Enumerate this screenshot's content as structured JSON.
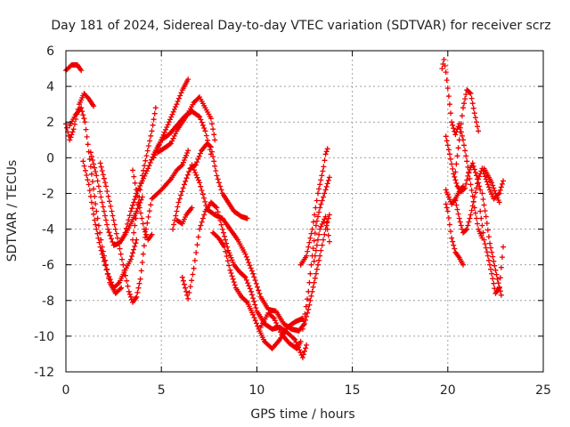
{
  "chart_data": {
    "type": "scatter",
    "title": "Day 181 of 2024, Sidereal Day-to-day VTEC variation (SDTVAR) for receiver scrz",
    "xlabel": "GPS time / hours",
    "ylabel": "SDTVAR / TECUs",
    "xlim": [
      0,
      25
    ],
    "ylim": [
      -12,
      6
    ],
    "xticks": [
      "0",
      "5",
      "10",
      "15",
      "20",
      "25"
    ],
    "yticks": [
      "-12",
      "-10",
      "-8",
      "-6",
      "-4",
      "-2",
      "0",
      "2",
      "4",
      "6"
    ],
    "grid": true,
    "marker": "+",
    "color": "#ee0000",
    "tracks": [
      [
        [
          0.0,
          4.9
        ],
        [
          0.3,
          5.2
        ],
        [
          0.6,
          5.2
        ],
        [
          0.8,
          4.9
        ]
      ],
      [
        [
          0.0,
          1.9
        ],
        [
          0.2,
          1.0
        ],
        [
          0.4,
          1.6
        ],
        [
          0.7,
          3.0
        ],
        [
          0.95,
          3.6
        ],
        [
          1.2,
          3.3
        ],
        [
          1.45,
          2.9
        ]
      ],
      [
        [
          0.2,
          1.8
        ],
        [
          0.5,
          2.4
        ],
        [
          0.8,
          2.8
        ],
        [
          1.0,
          2.0
        ],
        [
          1.3,
          -0.5
        ],
        [
          1.6,
          -3.0
        ],
        [
          1.9,
          -5.0
        ],
        [
          2.2,
          -6.5
        ],
        [
          2.5,
          -7.3
        ],
        [
          2.8,
          -7.0
        ],
        [
          3.1,
          -6.3
        ],
        [
          3.4,
          -5.7
        ],
        [
          3.7,
          -4.6
        ]
      ],
      [
        [
          0.9,
          -0.2
        ],
        [
          1.2,
          -1.5
        ],
        [
          1.5,
          -3.5
        ],
        [
          1.8,
          -5.0
        ],
        [
          2.0,
          -5.8
        ],
        [
          2.3,
          -7.0
        ],
        [
          2.6,
          -7.6
        ],
        [
          2.9,
          -7.3
        ]
      ],
      [
        [
          1.3,
          0.3
        ],
        [
          1.6,
          -1.0
        ],
        [
          1.9,
          -2.5
        ],
        [
          2.2,
          -4.0
        ],
        [
          2.5,
          -4.9
        ],
        [
          2.8,
          -4.8
        ],
        [
          3.1,
          -4.3
        ],
        [
          3.4,
          -3.7
        ],
        [
          3.7,
          -3.0
        ],
        [
          4.0,
          -2.2
        ]
      ],
      [
        [
          1.8,
          -0.3
        ],
        [
          2.1,
          -1.6
        ],
        [
          2.4,
          -3.0
        ],
        [
          2.7,
          -4.5
        ],
        [
          3.0,
          -6.0
        ],
        [
          3.3,
          -7.5
        ],
        [
          3.5,
          -8.1
        ],
        [
          3.7,
          -7.8
        ],
        [
          3.9,
          -6.8
        ],
        [
          4.2,
          -4.0
        ],
        [
          4.5,
          -2.3
        ],
        [
          5.0,
          -1.8
        ],
        [
          5.5,
          -1.2
        ],
        [
          5.8,
          -0.7
        ],
        [
          6.1,
          -0.4
        ],
        [
          6.4,
          0.4
        ]
      ],
      [
        [
          3.5,
          -0.7
        ],
        [
          3.8,
          -2.5
        ],
        [
          4.1,
          -4.0
        ],
        [
          4.3,
          -4.6
        ],
        [
          4.5,
          -4.3
        ]
      ],
      [
        [
          3.5,
          -4.6
        ],
        [
          4.0,
          -1.0
        ],
        [
          4.5,
          1.5
        ],
        [
          4.7,
          2.8
        ]
      ],
      [
        [
          3.1,
          -4.2
        ],
        [
          3.4,
          -3.0
        ],
        [
          3.7,
          -2.0
        ],
        [
          4.0,
          -1.3
        ],
        [
          4.3,
          -0.6
        ],
        [
          4.6,
          0.2
        ],
        [
          5.0,
          1.0
        ],
        [
          5.4,
          1.3
        ],
        [
          5.8,
          1.8
        ],
        [
          6.2,
          2.3
        ],
        [
          6.6,
          2.6
        ],
        [
          7.0,
          2.3
        ],
        [
          7.3,
          1.5
        ],
        [
          7.6,
          0.2
        ]
      ],
      [
        [
          4.6,
          0.0
        ],
        [
          5.0,
          1.0
        ],
        [
          5.4,
          2.0
        ],
        [
          5.8,
          3.0
        ],
        [
          6.1,
          3.8
        ],
        [
          6.4,
          4.4
        ]
      ],
      [
        [
          4.8,
          0.3
        ],
        [
          5.1,
          0.5
        ],
        [
          5.5,
          0.8
        ],
        [
          5.8,
          1.5
        ],
        [
          6.1,
          2.0
        ],
        [
          6.4,
          2.5
        ],
        [
          6.7,
          3.1
        ],
        [
          7.0,
          3.4
        ],
        [
          7.3,
          2.8
        ],
        [
          7.6,
          2.2
        ],
        [
          7.8,
          1.0
        ]
      ],
      [
        [
          5.8,
          -3.5
        ],
        [
          6.1,
          -3.7
        ],
        [
          6.3,
          -3.2
        ],
        [
          6.6,
          -2.8
        ]
      ],
      [
        [
          6.1,
          -6.7
        ],
        [
          6.4,
          -7.9
        ],
        [
          6.7,
          -6.2
        ],
        [
          7.0,
          -4.0
        ],
        [
          7.3,
          -3.0
        ],
        [
          7.6,
          -2.5
        ],
        [
          7.9,
          -2.8
        ],
        [
          8.2,
          -4.0
        ],
        [
          8.5,
          -5.2
        ],
        [
          8.8,
          -6.0
        ],
        [
          9.1,
          -6.4
        ],
        [
          9.4,
          -6.7
        ],
        [
          9.7,
          -7.5
        ],
        [
          10.0,
          -8.6
        ],
        [
          10.4,
          -9.3
        ],
        [
          10.8,
          -9.6
        ],
        [
          11.2,
          -9.5
        ],
        [
          11.6,
          -9.8
        ],
        [
          12.0,
          -10.2
        ],
        [
          12.4,
          -11.2
        ],
        [
          12.6,
          -10.5
        ]
      ],
      [
        [
          5.6,
          -4.0
        ],
        [
          5.9,
          -2.5
        ],
        [
          6.2,
          -1.5
        ],
        [
          6.5,
          -0.6
        ],
        [
          6.8,
          -0.4
        ],
        [
          7.1,
          0.4
        ],
        [
          7.4,
          0.8
        ],
        [
          7.6,
          0.6
        ],
        [
          7.9,
          -1.0
        ],
        [
          8.2,
          -2.0
        ],
        [
          8.5,
          -2.5
        ],
        [
          8.8,
          -3.0
        ],
        [
          9.2,
          -3.3
        ],
        [
          9.5,
          -3.4
        ]
      ],
      [
        [
          7.7,
          -4.2
        ],
        [
          8.0,
          -4.5
        ],
        [
          8.3,
          -5.0
        ],
        [
          8.6,
          -6.3
        ],
        [
          8.9,
          -7.3
        ],
        [
          9.2,
          -7.8
        ],
        [
          9.5,
          -8.1
        ],
        [
          9.8,
          -8.8
        ],
        [
          10.1,
          -9.6
        ],
        [
          10.4,
          -10.3
        ],
        [
          10.8,
          -10.7
        ],
        [
          11.2,
          -10.2
        ],
        [
          11.6,
          -9.5
        ],
        [
          12.0,
          -9.2
        ],
        [
          12.4,
          -9.0
        ]
      ],
      [
        [
          6.6,
          -0.4
        ],
        [
          7.0,
          -1.4
        ],
        [
          7.4,
          -2.9
        ],
        [
          7.8,
          -3.2
        ],
        [
          8.2,
          -3.4
        ],
        [
          8.6,
          -4.0
        ],
        [
          9.0,
          -4.6
        ],
        [
          9.4,
          -5.4
        ],
        [
          9.8,
          -6.5
        ],
        [
          10.2,
          -7.8
        ],
        [
          10.6,
          -8.5
        ],
        [
          11.0,
          -8.6
        ],
        [
          11.4,
          -9.3
        ],
        [
          11.8,
          -9.6
        ],
        [
          12.2,
          -9.7
        ],
        [
          12.5,
          -9.3
        ],
        [
          12.7,
          -8.5
        ],
        [
          13.0,
          -7.0
        ],
        [
          13.3,
          -5.5
        ],
        [
          13.6,
          -4.0
        ],
        [
          13.8,
          -3.2
        ]
      ],
      [
        [
          10.2,
          -9.5
        ],
        [
          10.6,
          -8.7
        ],
        [
          10.9,
          -9.0
        ],
        [
          11.3,
          -9.9
        ],
        [
          11.7,
          -10.4
        ],
        [
          12.1,
          -10.7
        ],
        [
          12.3,
          -10.3
        ]
      ],
      [
        [
          12.3,
          -6.0
        ],
        [
          12.6,
          -5.5
        ],
        [
          12.9,
          -4.0
        ],
        [
          13.2,
          -2.0
        ],
        [
          13.5,
          -0.5
        ],
        [
          13.6,
          0.2
        ],
        [
          13.7,
          0.5
        ]
      ],
      [
        [
          12.4,
          -9.6
        ],
        [
          12.7,
          -7.5
        ],
        [
          12.9,
          -5.5
        ],
        [
          13.1,
          -3.8
        ],
        [
          13.3,
          -2.8
        ],
        [
          13.6,
          -1.8
        ],
        [
          13.8,
          -1.1
        ]
      ],
      [
        [
          13.0,
          -5.8
        ],
        [
          13.3,
          -4.0
        ],
        [
          13.6,
          -3.3
        ],
        [
          13.8,
          -4.7
        ]
      ],
      [
        [
          19.7,
          5.0
        ],
        [
          19.8,
          5.5
        ],
        [
          19.9,
          4.8
        ],
        [
          20.1,
          3.0
        ],
        [
          20.2,
          2.0
        ],
        [
          20.4,
          1.3
        ],
        [
          20.6,
          1.9
        ]
      ],
      [
        [
          19.9,
          1.2
        ],
        [
          20.1,
          0.2
        ],
        [
          20.3,
          -0.9
        ],
        [
          20.5,
          -1.6
        ],
        [
          20.7,
          -1.9
        ],
        [
          20.9,
          -1.7
        ],
        [
          21.1,
          -0.8
        ],
        [
          21.3,
          -0.3
        ],
        [
          21.5,
          -1.0
        ],
        [
          21.7,
          -1.8
        ]
      ],
      [
        [
          19.9,
          -1.8
        ],
        [
          20.2,
          -2.6
        ],
        [
          20.4,
          -2.3
        ],
        [
          20.6,
          -1.9
        ],
        [
          20.8,
          -1.6
        ]
      ],
      [
        [
          19.9,
          -2.6
        ],
        [
          20.0,
          -3.0
        ],
        [
          20.2,
          -4.5
        ],
        [
          20.4,
          -5.3
        ],
        [
          20.6,
          -5.6
        ],
        [
          20.8,
          -6.0
        ]
      ],
      [
        [
          20.4,
          -0.8
        ],
        [
          20.6,
          1.0
        ],
        [
          20.8,
          2.8
        ],
        [
          21.0,
          3.8
        ],
        [
          21.2,
          3.6
        ],
        [
          21.4,
          2.5
        ],
        [
          21.6,
          1.5
        ]
      ],
      [
        [
          20.6,
          1.9
        ],
        [
          20.8,
          1.0
        ],
        [
          21.0,
          -0.2
        ],
        [
          21.2,
          -1.5
        ],
        [
          21.4,
          -2.8
        ],
        [
          21.6,
          -4.0
        ],
        [
          21.8,
          -4.5
        ]
      ],
      [
        [
          20.4,
          -2.4
        ],
        [
          20.6,
          -3.4
        ],
        [
          20.8,
          -4.2
        ],
        [
          21.0,
          -4.0
        ],
        [
          21.2,
          -3.2
        ],
        [
          21.4,
          -2.2
        ],
        [
          21.6,
          -1.2
        ],
        [
          21.8,
          -0.6
        ],
        [
          22.0,
          -1.2
        ],
        [
          22.2,
          -1.8
        ],
        [
          22.4,
          -2.3
        ],
        [
          22.7,
          -2.0
        ],
        [
          22.9,
          -1.3
        ]
      ],
      [
        [
          21.7,
          -3.0
        ],
        [
          21.9,
          -4.6
        ],
        [
          22.1,
          -5.5
        ],
        [
          22.3,
          -6.5
        ],
        [
          22.5,
          -7.6
        ],
        [
          22.7,
          -7.3
        ],
        [
          22.9,
          -5.0
        ]
      ],
      [
        [
          21.8,
          -2.0
        ],
        [
          22.0,
          -3.3
        ],
        [
          22.2,
          -4.8
        ],
        [
          22.4,
          -5.8
        ],
        [
          22.6,
          -6.8
        ],
        [
          22.8,
          -7.7
        ]
      ],
      [
        [
          21.9,
          -0.6
        ],
        [
          22.1,
          -1.0
        ],
        [
          22.3,
          -1.4
        ],
        [
          22.5,
          -2.0
        ],
        [
          22.7,
          -2.5
        ]
      ]
    ]
  }
}
